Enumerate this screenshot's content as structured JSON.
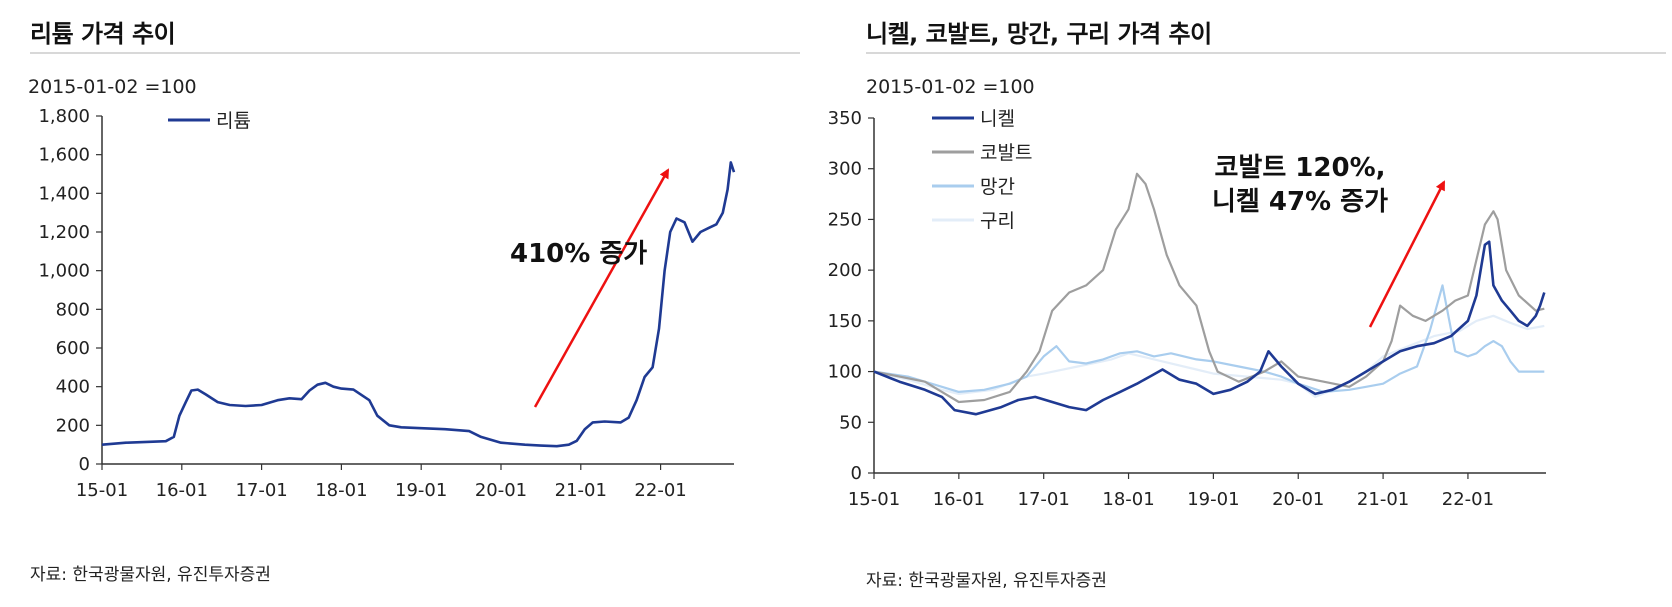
{
  "chart_data": [
    {
      "type": "line",
      "title": "리튬 가격 추이",
      "units_note": "2015-01-02 =100",
      "source": "자료: 한국광물자원, 유진투자증권",
      "annotation": "410% 증가",
      "ylim": [
        0,
        1800
      ],
      "yticks": [
        "0",
        "200",
        "400",
        "600",
        "800",
        "1,000",
        "1,200",
        "1,400",
        "1,600",
        "1,800"
      ],
      "ytick_values": [
        0,
        200,
        400,
        600,
        800,
        1000,
        1200,
        1400,
        1600,
        1800
      ],
      "xticks": [
        "15-01",
        "16-01",
        "17-01",
        "18-01",
        "19-01",
        "20-01",
        "21-01",
        "22-01"
      ],
      "xlim": [
        2015.0,
        2022.92
      ],
      "legend": "top-left",
      "series": [
        {
          "name": "리튬",
          "color": "#1f3a93",
          "x": [
            2015.0,
            2015.3,
            2015.6,
            2015.8,
            2015.9,
            2015.97,
            2016.05,
            2016.12,
            2016.2,
            2016.3,
            2016.45,
            2016.6,
            2016.8,
            2017.0,
            2017.2,
            2017.35,
            2017.5,
            2017.6,
            2017.7,
            2017.8,
            2017.9,
            2018.0,
            2018.15,
            2018.35,
            2018.45,
            2018.6,
            2018.75,
            2019.0,
            2019.3,
            2019.6,
            2019.75,
            2020.0,
            2020.3,
            2020.5,
            2020.7,
            2020.85,
            2020.95,
            2021.05,
            2021.15,
            2021.3,
            2021.5,
            2021.6,
            2021.7,
            2021.8,
            2021.9,
            2021.98,
            2022.05,
            2022.12,
            2022.2,
            2022.3,
            2022.4,
            2022.5,
            2022.6,
            2022.7,
            2022.78,
            2022.84,
            2022.88,
            2022.92
          ],
          "values": [
            100,
            110,
            115,
            118,
            140,
            250,
            320,
            380,
            385,
            360,
            320,
            305,
            300,
            305,
            330,
            340,
            335,
            380,
            410,
            420,
            400,
            390,
            385,
            330,
            250,
            200,
            190,
            185,
            180,
            170,
            140,
            110,
            100,
            95,
            92,
            100,
            120,
            180,
            215,
            220,
            215,
            240,
            330,
            450,
            500,
            700,
            1000,
            1200,
            1270,
            1250,
            1150,
            1200,
            1220,
            1240,
            1300,
            1420,
            1560,
            1510
          ]
        }
      ]
    },
    {
      "type": "line",
      "title": "니켈, 코발트, 망간, 구리 가격 추이",
      "units_note": "2015-01-02 =100",
      "source": "자료: 한국광물자원, 유진투자증권",
      "annotation": [
        "코발트 120%,",
        "니켈 47% 증가"
      ],
      "ylim": [
        0,
        350
      ],
      "yticks": [
        "0",
        "50",
        "100",
        "150",
        "200",
        "250",
        "300",
        "350"
      ],
      "ytick_values": [
        0,
        50,
        100,
        150,
        200,
        250,
        300,
        350
      ],
      "xticks": [
        "15-01",
        "16-01",
        "17-01",
        "18-01",
        "19-01",
        "20-01",
        "21-01",
        "22-01"
      ],
      "xlim": [
        2015.0,
        2022.92
      ],
      "legend": "top-left",
      "series": [
        {
          "name": "니켈",
          "color": "#1f3a93",
          "x": [
            2015.0,
            2015.3,
            2015.6,
            2015.8,
            2015.95,
            2016.2,
            2016.5,
            2016.7,
            2016.9,
            2017.1,
            2017.3,
            2017.5,
            2017.7,
            2017.9,
            2018.1,
            2018.25,
            2018.4,
            2018.6,
            2018.8,
            2019.0,
            2019.2,
            2019.4,
            2019.55,
            2019.65,
            2019.8,
            2020.0,
            2020.2,
            2020.4,
            2020.6,
            2020.8,
            2021.0,
            2021.2,
            2021.4,
            2021.6,
            2021.8,
            2022.0,
            2022.1,
            2022.2,
            2022.25,
            2022.3,
            2022.4,
            2022.5,
            2022.6,
            2022.7,
            2022.8,
            2022.85,
            2022.9
          ],
          "values": [
            100,
            90,
            82,
            75,
            62,
            58,
            65,
            72,
            75,
            70,
            65,
            62,
            72,
            80,
            88,
            95,
            102,
            92,
            88,
            78,
            82,
            90,
            100,
            120,
            105,
            88,
            78,
            82,
            90,
            100,
            110,
            120,
            125,
            128,
            135,
            150,
            175,
            225,
            228,
            185,
            170,
            160,
            150,
            145,
            155,
            165,
            178
          ]
        },
        {
          "name": "코발트",
          "color": "#9e9e9e",
          "x": [
            2015.0,
            2015.3,
            2015.6,
            2015.8,
            2016.0,
            2016.3,
            2016.6,
            2016.8,
            2016.95,
            2017.1,
            2017.3,
            2017.5,
            2017.7,
            2017.85,
            2018.0,
            2018.1,
            2018.2,
            2018.3,
            2018.45,
            2018.6,
            2018.8,
            2018.95,
            2019.05,
            2019.3,
            2019.6,
            2019.8,
            2020.0,
            2020.3,
            2020.6,
            2020.8,
            2021.0,
            2021.1,
            2021.2,
            2021.35,
            2021.5,
            2021.7,
            2021.85,
            2022.0,
            2022.1,
            2022.2,
            2022.3,
            2022.35,
            2022.45,
            2022.6,
            2022.8,
            2022.9
          ],
          "values": [
            100,
            95,
            90,
            80,
            70,
            72,
            80,
            100,
            120,
            160,
            178,
            185,
            200,
            240,
            260,
            295,
            285,
            260,
            215,
            185,
            165,
            120,
            100,
            90,
            100,
            110,
            95,
            90,
            85,
            95,
            110,
            130,
            165,
            155,
            150,
            160,
            170,
            175,
            210,
            245,
            258,
            250,
            200,
            175,
            160,
            162
          ]
        },
        {
          "name": "망간",
          "color": "#a9cdee",
          "x": [
            2015.0,
            2015.4,
            2015.8,
            2016.0,
            2016.3,
            2016.6,
            2016.8,
            2017.0,
            2017.15,
            2017.3,
            2017.5,
            2017.7,
            2017.9,
            2018.1,
            2018.3,
            2018.5,
            2018.8,
            2019.0,
            2019.3,
            2019.6,
            2019.8,
            2020.0,
            2020.3,
            2020.6,
            2020.8,
            2021.0,
            2021.2,
            2021.4,
            2021.55,
            2021.7,
            2021.85,
            2022.0,
            2022.1,
            2022.2,
            2022.3,
            2022.4,
            2022.5,
            2022.6,
            2022.75,
            2022.9
          ],
          "values": [
            100,
            95,
            85,
            80,
            82,
            88,
            95,
            115,
            125,
            110,
            108,
            112,
            118,
            120,
            115,
            118,
            112,
            110,
            105,
            100,
            95,
            88,
            80,
            82,
            85,
            88,
            98,
            105,
            140,
            185,
            120,
            115,
            118,
            125,
            130,
            125,
            110,
            100,
            100,
            100
          ]
        },
        {
          "name": "구리",
          "color": "#e3edf8",
          "x": [
            2015.0,
            2015.4,
            2015.8,
            2016.0,
            2016.4,
            2016.8,
            2017.0,
            2017.4,
            2017.8,
            2018.0,
            2018.4,
            2018.8,
            2019.0,
            2019.4,
            2019.8,
            2020.0,
            2020.2,
            2020.5,
            2020.8,
            2021.0,
            2021.3,
            2021.6,
            2021.9,
            2022.1,
            2022.3,
            2022.5,
            2022.7,
            2022.9
          ],
          "values": [
            100,
            92,
            82,
            78,
            82,
            95,
            98,
            105,
            112,
            118,
            110,
            102,
            98,
            95,
            92,
            88,
            75,
            85,
            100,
            115,
            125,
            135,
            140,
            150,
            155,
            148,
            142,
            145
          ]
        }
      ]
    }
  ]
}
